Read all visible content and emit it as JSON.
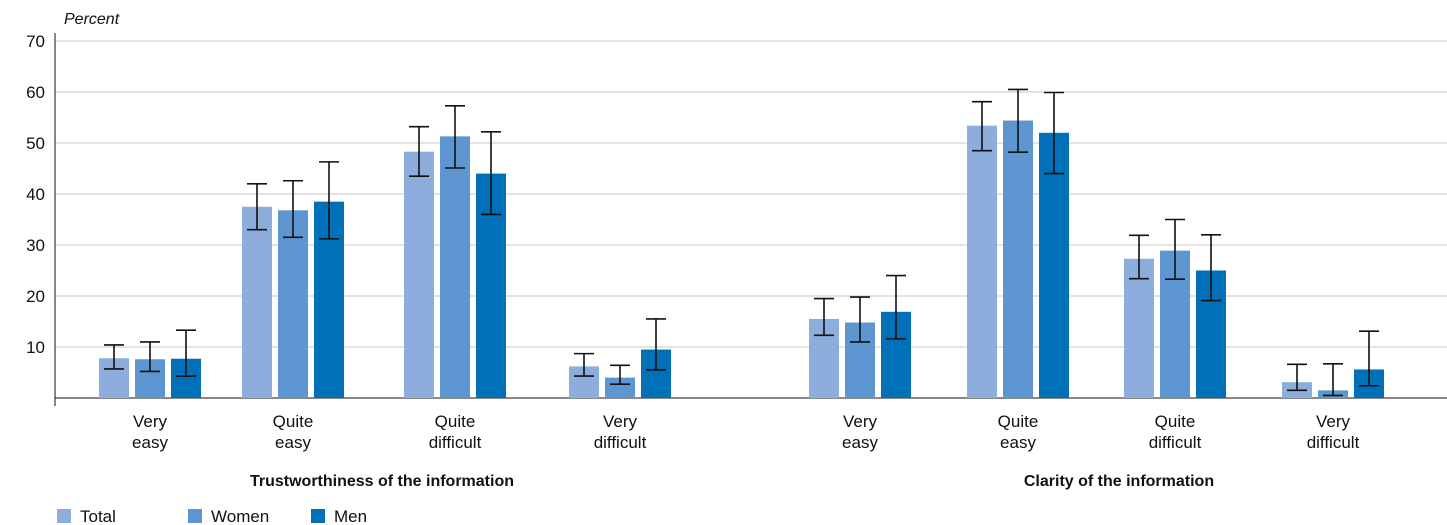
{
  "chart_data": {
    "type": "bar",
    "ylabel": "Percent",
    "ylim": [
      0,
      70
    ],
    "yticks": [
      10,
      20,
      30,
      40,
      50,
      60,
      70
    ],
    "grid": true,
    "legend_position": "bottom-left",
    "groups": [
      {
        "title": "Trustworthiness of the information",
        "categories": [
          [
            "Very",
            "easy"
          ],
          [
            "Quite",
            "easy"
          ],
          [
            "Quite",
            "difficult"
          ],
          [
            "Very",
            "difficult"
          ]
        ]
      },
      {
        "title": "Clarity of the information",
        "categories": [
          [
            "Very",
            "easy"
          ],
          [
            "Quite",
            "easy"
          ],
          [
            "Quite",
            "difficult"
          ],
          [
            "Very",
            "difficult"
          ]
        ]
      }
    ],
    "series": [
      {
        "name": "Total",
        "color": "#8daedd",
        "values": [
          7.8,
          37.5,
          48.3,
          6.2,
          15.5,
          53.4,
          27.3,
          3.1
        ],
        "err_low": [
          5.7,
          33.0,
          43.5,
          4.3,
          12.3,
          48.5,
          23.4,
          1.5
        ],
        "err_high": [
          10.4,
          42.0,
          53.2,
          8.7,
          19.5,
          58.1,
          31.9,
          6.6
        ]
      },
      {
        "name": "Women",
        "color": "#5d96d0",
        "values": [
          7.6,
          36.8,
          51.3,
          4.0,
          14.8,
          54.4,
          28.9,
          1.5
        ],
        "err_low": [
          5.2,
          31.5,
          45.1,
          2.7,
          11.0,
          48.2,
          23.3,
          0.5
        ],
        "err_high": [
          11.0,
          42.6,
          57.3,
          6.4,
          19.8,
          60.5,
          35.0,
          6.7
        ]
      },
      {
        "name": "Men",
        "color": "#0070b8",
        "values": [
          7.7,
          38.5,
          44.0,
          9.5,
          16.9,
          52.0,
          25.0,
          5.6
        ],
        "err_low": [
          4.3,
          31.2,
          36.0,
          5.5,
          11.6,
          44.0,
          19.1,
          2.4
        ],
        "err_high": [
          13.3,
          46.3,
          52.2,
          15.5,
          24.0,
          59.9,
          32.0,
          13.1
        ]
      }
    ]
  }
}
